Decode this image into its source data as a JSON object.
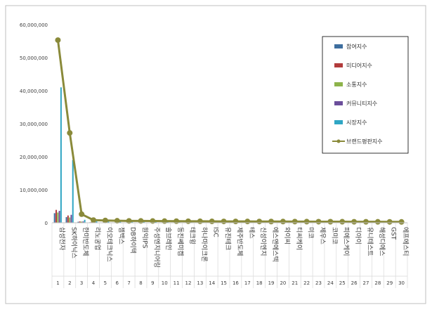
{
  "chart_data": {
    "type": "bar",
    "title": "",
    "xlabel": "",
    "ylabel": "",
    "ylim": [
      0,
      60000000
    ],
    "y_ticks": [
      "0",
      "10,000,000",
      "20,000,000",
      "30,000,000",
      "40,000,000",
      "50,000,000",
      "60,000,000"
    ],
    "y_tick_values": [
      0,
      10000000,
      20000000,
      30000000,
      40000000,
      50000000,
      60000000
    ],
    "grid": false,
    "legend_position": "top-right",
    "ranks": [
      "1",
      "2",
      "3",
      "4",
      "5",
      "6",
      "7",
      "8",
      "9",
      "10",
      "11",
      "12",
      "13",
      "14",
      "15",
      "16",
      "17",
      "18",
      "19",
      "20",
      "21",
      "22",
      "23",
      "24",
      "25",
      "26",
      "27",
      "28",
      "29",
      "30"
    ],
    "categories": [
      "삼성전자",
      "SK하이닉스",
      "한미반도체",
      "리노공업",
      "이오테크닉스",
      "젬백스",
      "DB하이텍",
      "원익IPS",
      "주성엔지니어링",
      "솔브레인",
      "동진쎄미켐",
      "테크윙",
      "하나마이크론",
      "ISC",
      "유진테크",
      "제주반도체",
      "테스",
      "신성이엔지",
      "에스앤에스텍",
      "와이씨",
      "티씨케이",
      "미코",
      "제우스",
      "코미코",
      "피에스케이",
      "디아이",
      "유니테스트",
      "해성디에스",
      "GST",
      "에프에스티"
    ],
    "series": [
      {
        "name": "참여지수",
        "color": "#3e6e9e",
        "kind": "bar",
        "values": [
          2900000,
          1700000,
          300000,
          150000,
          100000,
          60000,
          60000,
          50000,
          40000,
          40000,
          40000,
          30000,
          30000,
          30000,
          30000,
          25000,
          25000,
          25000,
          20000,
          20000,
          20000,
          20000,
          20000,
          15000,
          15000,
          15000,
          15000,
          15000,
          10000,
          10000
        ]
      },
      {
        "name": "미디어지수",
        "color": "#b23b3b",
        "kind": "bar",
        "values": [
          3900000,
          2200000,
          400000,
          200000,
          150000,
          90000,
          80000,
          70000,
          60000,
          60000,
          60000,
          50000,
          50000,
          40000,
          40000,
          40000,
          35000,
          35000,
          30000,
          30000,
          30000,
          30000,
          25000,
          25000,
          25000,
          20000,
          20000,
          20000,
          20000,
          15000
        ]
      },
      {
        "name": "소통지수",
        "color": "#8db34a",
        "kind": "bar",
        "values": [
          3100000,
          1600000,
          350000,
          150000,
          100000,
          60000,
          60000,
          50000,
          40000,
          40000,
          40000,
          30000,
          30000,
          30000,
          30000,
          25000,
          25000,
          25000,
          20000,
          20000,
          20000,
          20000,
          20000,
          15000,
          15000,
          15000,
          15000,
          15000,
          10000,
          10000
        ]
      },
      {
        "name": "커뮤니티지수",
        "color": "#6b4e9b",
        "kind": "bar",
        "values": [
          3600000,
          2400000,
          400000,
          200000,
          150000,
          80000,
          80000,
          70000,
          60000,
          60000,
          50000,
          50000,
          40000,
          40000,
          40000,
          35000,
          35000,
          30000,
          30000,
          30000,
          25000,
          25000,
          25000,
          20000,
          20000,
          20000,
          20000,
          15000,
          15000,
          15000
        ]
      },
      {
        "name": "시장지수",
        "color": "#2fa6c4",
        "kind": "bar",
        "values": [
          41000000,
          19000000,
          900000,
          400000,
          350000,
          300000,
          280000,
          260000,
          250000,
          240000,
          230000,
          220000,
          210000,
          200000,
          190000,
          180000,
          170000,
          160000,
          150000,
          140000,
          130000,
          120000,
          110000,
          100000,
          90000,
          80000,
          70000,
          60000,
          50000,
          40000
        ]
      },
      {
        "name": "브랜드평판지수",
        "color": "#8a8a3a",
        "kind": "line",
        "values": [
          55300000,
          27200000,
          2600000,
          800000,
          700000,
          600000,
          560000,
          550000,
          520000,
          500000,
          480000,
          460000,
          440000,
          420000,
          410000,
          400000,
          390000,
          380000,
          370000,
          360000,
          350000,
          340000,
          330000,
          320000,
          310000,
          300000,
          290000,
          280000,
          270000,
          260000
        ]
      }
    ]
  }
}
